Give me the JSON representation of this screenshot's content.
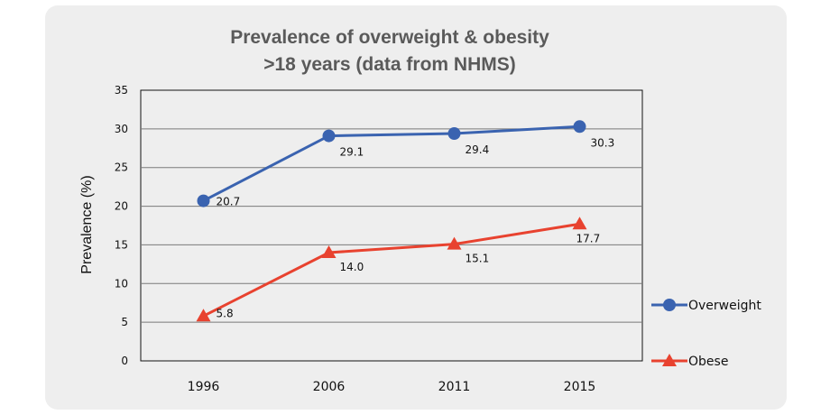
{
  "chart_data": {
    "type": "line",
    "title": "Prevalence of overweight & obesity",
    "subtitle": ">18 years (data from NHMS)",
    "ylabel": "Prevalence (%)",
    "xlabel": "",
    "categories": [
      "1996",
      "2006",
      "2011",
      "2015"
    ],
    "ylim": [
      0,
      35
    ],
    "yticks": [
      0,
      5,
      10,
      15,
      20,
      25,
      30,
      35
    ],
    "grid": true,
    "legend_position": "right",
    "series": [
      {
        "name": "Overweight",
        "values": [
          20.7,
          29.1,
          29.4,
          30.3
        ],
        "labels": [
          "20.7",
          "29.1",
          "29.4",
          "30.3"
        ],
        "color": "#3a63b0",
        "marker": "circle"
      },
      {
        "name": "Obese",
        "values": [
          5.8,
          14.0,
          15.1,
          17.7
        ],
        "labels": [
          "5.8",
          "14.0",
          "15.1",
          "17.7"
        ],
        "color": "#e8422f",
        "marker": "triangle"
      }
    ]
  }
}
